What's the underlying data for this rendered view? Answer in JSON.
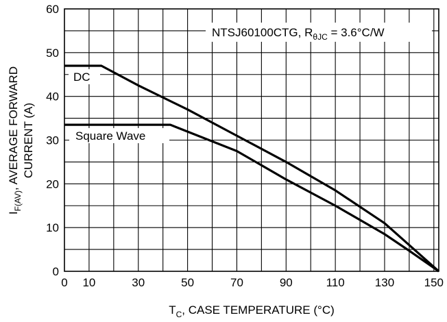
{
  "chart_data": {
    "type": "line",
    "title": "",
    "xlabel": {
      "main": "T",
      "sub": "C",
      "rest": ", CASE TEMPERATURE (°C)"
    },
    "ylabel": {
      "line1_main": "I",
      "line1_sub": "F(AV)",
      "line1_rest": ", AVERAGE FORWARD",
      "line2": "CURRENT (A)"
    },
    "xlim": [
      0,
      152
    ],
    "ylim": [
      0,
      60
    ],
    "grid": true,
    "x_ticks": [
      0,
      10,
      30,
      50,
      70,
      90,
      110,
      130,
      150
    ],
    "y_ticks": [
      0,
      10,
      20,
      30,
      40,
      50,
      60
    ],
    "x_grid": [
      10,
      20,
      30,
      40,
      50,
      60,
      70,
      80,
      90,
      100,
      110,
      120,
      130,
      140,
      150
    ],
    "y_grid": [
      5,
      10,
      15,
      20,
      25,
      30,
      35,
      40,
      45,
      50,
      55
    ],
    "annotation": {
      "main": "NTSJ60100CTG, R",
      "sub": "θJC",
      "rest": " = 3.6°C/W"
    },
    "series": [
      {
        "name": "DC",
        "points": [
          [
            0,
            47.0
          ],
          [
            15,
            47.0
          ],
          [
            30,
            42.5
          ],
          [
            50,
            37.0
          ],
          [
            70,
            31.0
          ],
          [
            90,
            25.0
          ],
          [
            110,
            18.5
          ],
          [
            130,
            11.0
          ],
          [
            140,
            6.0
          ],
          [
            152,
            0
          ]
        ]
      },
      {
        "name": "Square Wave",
        "points": [
          [
            0,
            33.5
          ],
          [
            43,
            33.5
          ],
          [
            70,
            27.5
          ],
          [
            90,
            21.0
          ],
          [
            110,
            15.0
          ],
          [
            130,
            8.5
          ],
          [
            140,
            4.7
          ],
          [
            152,
            0
          ]
        ]
      }
    ]
  }
}
